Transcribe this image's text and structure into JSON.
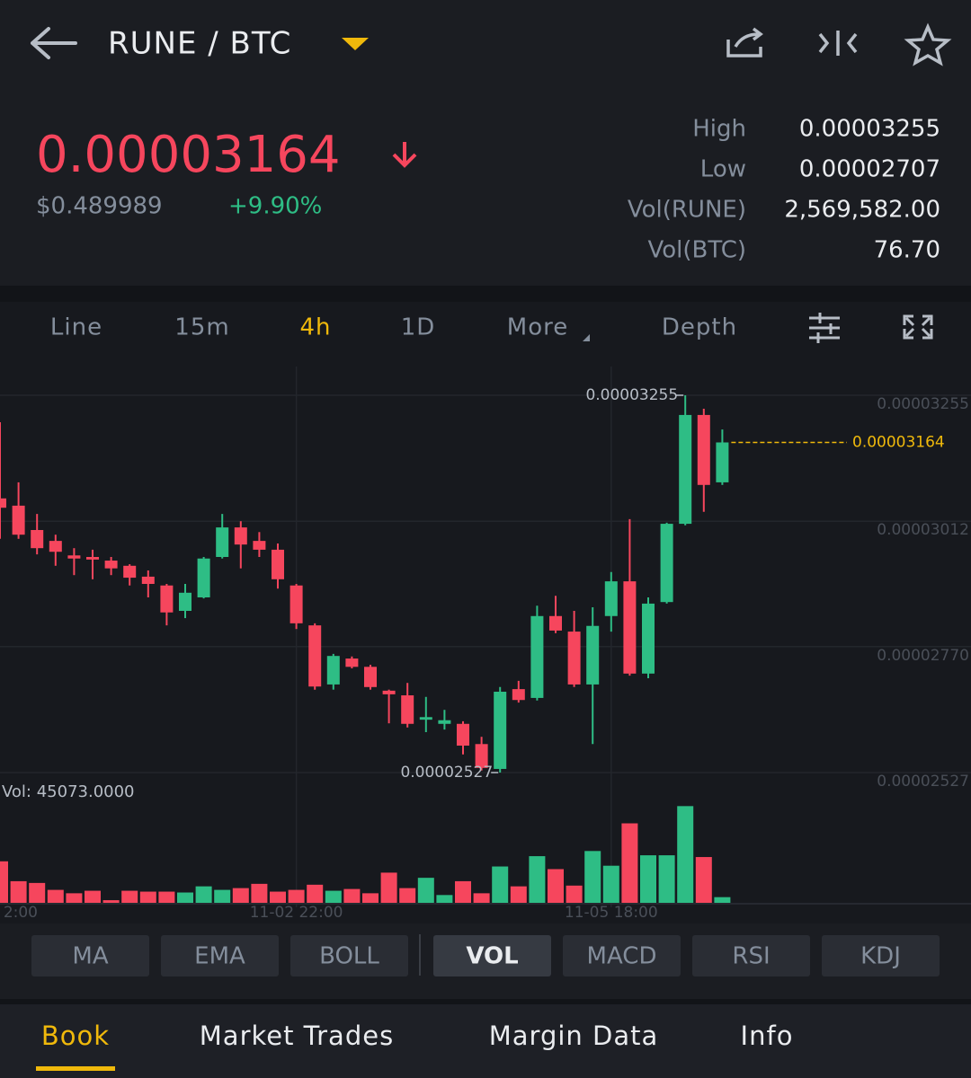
{
  "header": {
    "pair": "RUNE / BTC",
    "price": "0.00003164",
    "usd_price": "$0.489989",
    "change": "+9.90%",
    "stats": [
      {
        "label": "High",
        "value": "0.00003255"
      },
      {
        "label": "Low",
        "value": "0.00002707"
      },
      {
        "label": "Vol(RUNE)",
        "value": "2,569,582.00"
      },
      {
        "label": "Vol(BTC)",
        "value": "76.70"
      }
    ]
  },
  "intervals": [
    "Line",
    "15m",
    "4h",
    "1D",
    "More",
    "Depth"
  ],
  "active_interval": 2,
  "chart_data": {
    "type": "candlestick",
    "grid": true,
    "up_color": "#2ebd85",
    "down_color": "#f6465d",
    "categories": [
      null,
      null,
      null,
      null,
      null,
      null,
      null,
      null,
      null,
      null,
      null,
      null,
      null,
      null,
      null,
      null,
      "11-02 22:00",
      null,
      null,
      null,
      null,
      null,
      null,
      null,
      null,
      null,
      null,
      null,
      null,
      null,
      null,
      null,
      null,
      "11-05 18:00",
      null,
      null,
      null,
      null,
      null,
      null
    ],
    "edge_label": "2:00",
    "open": [
      3.056e-05,
      3.042e-05,
      2.995e-05,
      2.974e-05,
      2.946e-05,
      2.943e-05,
      2.936e-05,
      2.926e-05,
      2.905e-05,
      2.888e-05,
      2.839e-05,
      2.865e-05,
      2.943e-05,
      3e-05,
      2.974e-05,
      2.957e-05,
      2.888e-05,
      2.811e-05,
      2.697e-05,
      2.747e-05,
      2.731e-05,
      2.685e-05,
      2.676e-05,
      2.629e-05,
      2.621e-05,
      2.621e-05,
      2.582e-05,
      2.534e-05,
      2.688e-05,
      2.671e-05,
      2.829e-05,
      2.799e-05,
      2.697e-05,
      2.829e-05,
      2.896e-05,
      2.718e-05,
      2.856e-05,
      3.007e-05,
      3.217e-05,
      3.087e-05
    ],
    "high": [
      3.203e-05,
      3.087e-05,
      3.026e-05,
      2.986e-05,
      2.96e-05,
      2.957e-05,
      2.943e-05,
      2.929e-05,
      2.917e-05,
      2.891e-05,
      2.891e-05,
      2.943e-05,
      3.026e-05,
      3.012e-05,
      2.991e-05,
      2.969e-05,
      2.891e-05,
      2.815e-05,
      2.756e-05,
      2.751e-05,
      2.735e-05,
      2.687e-05,
      2.7e-05,
      2.673e-05,
      2.648e-05,
      2.626e-05,
      2.596e-05,
      2.692e-05,
      2.704e-05,
      2.849e-05,
      2.868e-05,
      2.839e-05,
      2.846e-05,
      2.914e-05,
      3.016e-05,
      2.865e-05,
      3.009e-05,
      3.255e-05,
      3.229e-05,
      3.189e-05
    ],
    "low": [
      2.978e-05,
      2.978e-05,
      2.948e-05,
      2.926e-05,
      2.908e-05,
      2.9e-05,
      2.908e-05,
      2.888e-05,
      2.865e-05,
      2.811e-05,
      2.825e-05,
      2.863e-05,
      2.94e-05,
      2.921e-05,
      2.943e-05,
      2.882e-05,
      2.804e-05,
      2.687e-05,
      2.687e-05,
      2.728e-05,
      2.687e-05,
      2.622e-05,
      2.614e-05,
      2.605e-05,
      2.61e-05,
      2.562e-05,
      2.531e-05,
      2.527e-05,
      2.662e-05,
      2.666e-05,
      2.796e-05,
      2.692e-05,
      2.582e-05,
      2.799e-05,
      2.714e-05,
      2.709e-05,
      2.853e-05,
      3.004e-05,
      3.03e-05,
      3.082e-05
    ],
    "close": [
      3.038e-05,
      2.986e-05,
      2.96e-05,
      2.953e-05,
      2.94e-05,
      2.938e-05,
      2.921e-05,
      2.903e-05,
      2.891e-05,
      2.836e-05,
      2.874e-05,
      2.94e-05,
      3e-05,
      2.967e-05,
      2.957e-05,
      2.9e-05,
      2.815e-05,
      2.693e-05,
      2.752e-05,
      2.731e-05,
      2.692e-05,
      2.678e-05,
      2.621e-05,
      2.634e-05,
      2.628e-05,
      2.579e-05,
      2.536e-05,
      2.683e-05,
      2.667e-05,
      2.829e-05,
      2.801e-05,
      2.697e-05,
      2.81e-05,
      2.896e-05,
      2.718e-05,
      2.853e-05,
      3.007e-05,
      3.217e-05,
      3.082e-05,
      3.164e-05
    ],
    "volume": [
      330000,
      172000,
      158000,
      103000,
      76000,
      96000,
      21000,
      96000,
      89000,
      89000,
      82000,
      131000,
      103000,
      117000,
      151000,
      89000,
      103000,
      144000,
      96000,
      110000,
      76000,
      240000,
      117000,
      199000,
      62000,
      172000,
      76000,
      289000,
      131000,
      371000,
      268000,
      137000,
      412000,
      295000,
      632000,
      378000,
      378000,
      769000,
      364000,
      45073
    ],
    "ylim": [
      2.527e-05,
      3.307e-05
    ],
    "yticks": [
      3.255e-05,
      3.012e-05,
      {
        "value": 2.77e-05,
        "label": "0.00002770"
      },
      2.527e-05
    ],
    "vol_ylim": [
      0,
      1000000
    ],
    "volume_label": "Vol: 45073.0000",
    "last_price": 3.164e-05,
    "high_marker": 3.255e-05,
    "low_marker": 2.527e-05
  },
  "indicators": [
    "MA",
    "EMA",
    "BOLL",
    "VOL",
    "MACD",
    "RSI",
    "KDJ"
  ],
  "active_indicator": 3,
  "tabs": [
    "Book",
    "Market Trades",
    "Margin Data",
    "Info"
  ],
  "active_tab": 0
}
